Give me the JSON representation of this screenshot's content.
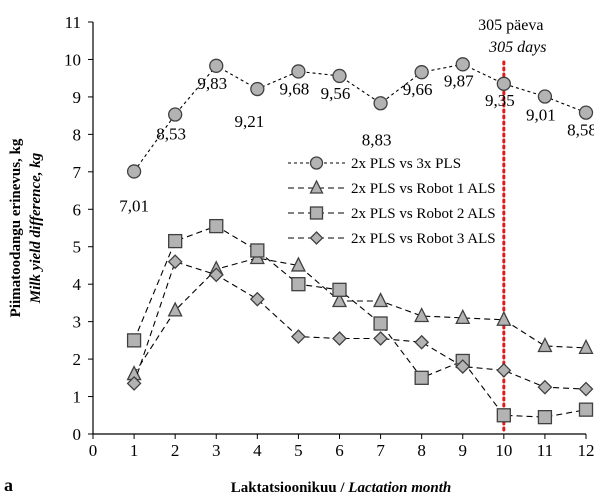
{
  "chart_data": {
    "type": "line",
    "panel_label": "a",
    "xlabel": "Laktatsioonikuu / ",
    "xlabel_italic": "Lactation month",
    "ylabel": "Piimatoodangu erinevus, kg",
    "ylabel_italic": "Milk yield difference, kg",
    "xlim": [
      0,
      12
    ],
    "ylim": [
      0,
      11
    ],
    "x_ticks": [
      "0",
      "1",
      "2",
      "3",
      "4",
      "5",
      "6",
      "7",
      "8",
      "9",
      "10",
      "11",
      "12"
    ],
    "y_ticks": [
      "0",
      "1",
      "2",
      "3",
      "4",
      "5",
      "6",
      "7",
      "8",
      "9",
      "10",
      "11"
    ],
    "grid": false,
    "legend_position": "center-right",
    "annotation": {
      "x": 10,
      "line_color": "#e01b1b",
      "text": "305 päeva",
      "text_italic": "305 days"
    },
    "x": [
      1,
      2,
      3,
      4,
      5,
      6,
      7,
      8,
      9,
      10,
      11,
      12
    ],
    "series": [
      {
        "name": "2x PLS vs 3x PLS",
        "marker": "circle",
        "values": [
          7.01,
          8.53,
          9.83,
          9.21,
          9.68,
          9.56,
          8.83,
          9.66,
          9.87,
          9.35,
          9.01,
          8.58
        ],
        "labels": [
          "7,01",
          "8,53",
          "9,83",
          "9,21",
          "9,68",
          "9,56",
          "8,83",
          "9,66",
          "9,87",
          "9,35",
          "9,01",
          "8,58"
        ],
        "line": "dotted"
      },
      {
        "name": "2x PLS vs Robot 1 ALS",
        "marker": "triangle",
        "values": [
          1.6,
          3.3,
          4.4,
          4.7,
          4.5,
          3.55,
          3.55,
          3.15,
          3.1,
          3.05,
          2.35,
          2.3
        ],
        "line": "dashed"
      },
      {
        "name": "2x PLS vs Robot 2 ALS",
        "marker": "square",
        "values": [
          2.5,
          5.15,
          5.55,
          4.9,
          4.0,
          3.85,
          2.95,
          1.5,
          1.95,
          0.5,
          0.45,
          0.65
        ],
        "line": "dashed"
      },
      {
        "name": "2x PLS vs Robot 3 ALS",
        "marker": "diamond",
        "values": [
          1.35,
          4.6,
          4.25,
          3.6,
          2.6,
          2.55,
          2.55,
          2.45,
          1.8,
          1.7,
          1.25,
          1.2
        ],
        "line": "dashed"
      }
    ],
    "colors": {
      "marker_fill": "#b3b3b3",
      "marker_stroke": "#404040",
      "line": "#000000",
      "annotation_line": "#e01b1b"
    }
  }
}
